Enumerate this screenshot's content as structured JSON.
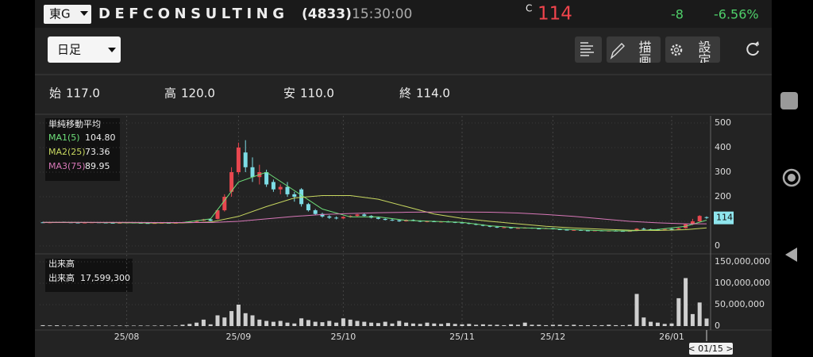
{
  "header": {
    "market": "東G",
    "company": "DEFCONSULTING",
    "code": "(4833)",
    "time": "15:30:00",
    "price_flag": "C",
    "price": "114",
    "change": "-8",
    "change_pct": "-6.56%"
  },
  "toolbar": {
    "period": "日足",
    "draw_button": "描画",
    "settings_button": "設定"
  },
  "ohlc_row": [
    {
      "label": "始",
      "value": "117.0"
    },
    {
      "label": "高",
      "value": "120.0"
    },
    {
      "label": "安",
      "value": "110.0"
    },
    {
      "label": "終",
      "value": "114.0"
    }
  ],
  "cursor_date": "< 01/15 >",
  "chart_data": {
    "type": "candlestick",
    "categories": [
      null,
      null,
      null,
      null,
      null,
      null,
      null,
      null,
      null,
      null,
      null,
      null,
      "25/08",
      null,
      null,
      null,
      null,
      null,
      null,
      null,
      null,
      null,
      null,
      null,
      null,
      null,
      null,
      null,
      "25/09",
      null,
      null,
      null,
      null,
      null,
      null,
      null,
      null,
      null,
      null,
      null,
      null,
      null,
      null,
      "25/10",
      null,
      null,
      null,
      null,
      null,
      null,
      null,
      null,
      null,
      null,
      null,
      null,
      null,
      null,
      null,
      null,
      "25/11",
      null,
      null,
      null,
      null,
      null,
      null,
      null,
      null,
      null,
      null,
      null,
      null,
      "25/12",
      null,
      null,
      null,
      null,
      null,
      null,
      null,
      null,
      null,
      null,
      null,
      null,
      null,
      null,
      null,
      null,
      "26/01",
      null,
      null,
      null,
      null,
      null
    ],
    "open": [
      96,
      95,
      96,
      97,
      96,
      95,
      94,
      95,
      96,
      95,
      94,
      93,
      94,
      95,
      94,
      93,
      92,
      93,
      94,
      93,
      94,
      96,
      98,
      103,
      108,
      110,
      145,
      220,
      300,
      380,
      320,
      280,
      300,
      260,
      230,
      240,
      210,
      230,
      170,
      145,
      130,
      120,
      115,
      112,
      118,
      122,
      128,
      122,
      115,
      110,
      106,
      104,
      100,
      106,
      102,
      99,
      100,
      98,
      99,
      97,
      95,
      93,
      90,
      86,
      82,
      78,
      75,
      76,
      72,
      73,
      74,
      71,
      70,
      72,
      68,
      66,
      64,
      65,
      63,
      62,
      63,
      61,
      62,
      61,
      60,
      61,
      70,
      68,
      67,
      66,
      69,
      68,
      72,
      88,
      100,
      117
    ],
    "high": [
      98,
      97,
      98,
      99,
      97,
      96,
      96,
      97,
      97,
      96,
      95,
      95,
      96,
      96,
      95,
      94,
      94,
      95,
      95,
      95,
      97,
      99,
      104,
      110,
      112,
      150,
      210,
      320,
      420,
      430,
      360,
      330,
      310,
      270,
      250,
      260,
      220,
      235,
      175,
      150,
      135,
      125,
      120,
      120,
      125,
      130,
      132,
      125,
      118,
      112,
      110,
      106,
      108,
      108,
      104,
      102,
      103,
      101,
      102,
      99,
      98,
      95,
      92,
      88,
      84,
      80,
      78,
      77,
      75,
      76,
      75,
      73,
      74,
      73,
      70,
      68,
      66,
      67,
      65,
      64,
      64,
      63,
      64,
      63,
      62,
      72,
      74,
      70,
      69,
      70,
      72,
      75,
      90,
      110,
      125,
      120
    ],
    "low": [
      94,
      93,
      95,
      95,
      94,
      93,
      93,
      94,
      94,
      93,
      92,
      92,
      93,
      93,
      92,
      91,
      91,
      92,
      92,
      92,
      93,
      95,
      97,
      101,
      100,
      108,
      140,
      200,
      290,
      300,
      260,
      250,
      240,
      220,
      210,
      200,
      180,
      160,
      140,
      125,
      115,
      110,
      108,
      110,
      115,
      118,
      120,
      112,
      108,
      104,
      102,
      98,
      99,
      100,
      97,
      96,
      97,
      95,
      96,
      93,
      92,
      88,
      84,
      80,
      76,
      73,
      72,
      70,
      70,
      71,
      70,
      68,
      69,
      67,
      65,
      63,
      62,
      62,
      60,
      60,
      60,
      59,
      60,
      59,
      58,
      60,
      66,
      65,
      64,
      65,
      66,
      67,
      70,
      85,
      98,
      110
    ],
    "close": [
      95,
      96,
      97,
      96,
      95,
      94,
      95,
      96,
      95,
      94,
      93,
      94,
      95,
      94,
      93,
      92,
      93,
      94,
      93,
      94,
      96,
      98,
      103,
      108,
      102,
      145,
      200,
      300,
      400,
      320,
      280,
      300,
      250,
      230,
      240,
      210,
      200,
      170,
      145,
      130,
      120,
      115,
      112,
      118,
      122,
      128,
      122,
      115,
      110,
      106,
      104,
      100,
      106,
      102,
      99,
      100,
      98,
      99,
      97,
      95,
      93,
      90,
      86,
      82,
      78,
      75,
      76,
      72,
      73,
      74,
      71,
      70,
      72,
      68,
      66,
      64,
      65,
      63,
      62,
      63,
      61,
      62,
      61,
      60,
      61,
      70,
      68,
      67,
      66,
      69,
      68,
      72,
      88,
      100,
      122,
      114
    ],
    "volume": [
      2000000,
      1500000,
      1800000,
      1200000,
      1000000,
      1500000,
      1300000,
      1100000,
      1600000,
      1200000,
      1000000,
      1400000,
      1200000,
      1100000,
      1300000,
      1000000,
      1200000,
      1500000,
      1100000,
      1400000,
      3000000,
      5000000,
      8000000,
      15000000,
      4000000,
      25000000,
      20000000,
      35000000,
      50000000,
      30000000,
      25000000,
      15000000,
      12000000,
      10000000,
      12000000,
      8000000,
      6000000,
      18000000,
      14000000,
      10000000,
      9000000,
      12000000,
      8000000,
      18000000,
      15000000,
      12000000,
      10000000,
      8000000,
      7000000,
      10000000,
      6000000,
      12000000,
      8000000,
      6000000,
      5000000,
      8000000,
      6000000,
      5000000,
      7000000,
      5000000,
      4000000,
      5000000,
      3000000,
      4000000,
      3000000,
      3000000,
      2000000,
      4000000,
      3000000,
      8000000,
      3000000,
      3000000,
      2000000,
      3000000,
      3000000,
      2000000,
      3000000,
      2000000,
      2000000,
      2000000,
      2000000,
      3000000,
      2000000,
      2000000,
      3000000,
      75000000,
      20000000,
      10000000,
      8000000,
      5000000,
      6000000,
      65000000,
      112000000,
      28000000,
      55000000,
      17599300
    ],
    "up_color": "#e8474f",
    "down_color": "#7ddde6",
    "volume_color": "#cfcfcf",
    "ylim": [
      0,
      500
    ],
    "yticks": [
      0,
      100,
      200,
      300,
      400,
      500
    ],
    "volume_ylim": [
      0,
      150000000
    ],
    "volume_ticks": [
      0,
      {
        "value": 50000000,
        "label": "50,000,000"
      },
      {
        "value": 100000000,
        "label": "100,000,000"
      },
      {
        "value": 150000000,
        "label": "150,000,000"
      }
    ],
    "ma_title": "単純移動平均",
    "ma": [
      {
        "name": "MA1(5)",
        "value_label": "104.80",
        "color": "#6ee07a",
        "x": [
          0,
          4,
          8,
          12,
          16,
          20,
          24,
          28,
          32,
          36,
          40,
          44,
          48,
          52,
          56,
          60,
          64,
          68,
          72,
          76,
          80,
          84,
          88,
          92,
          95
        ],
        "values": [
          96,
          96,
          95,
          94,
          93,
          95,
          110,
          260,
          300,
          225,
          150,
          118,
          118,
          104,
          100,
          96,
          82,
          74,
          71,
          66,
          62,
          61,
          67,
          80,
          104.8
        ]
      },
      {
        "name": "MA2(25)",
        "value_label": "73.36",
        "color": "#c8d860",
        "x": [
          0,
          4,
          8,
          12,
          16,
          20,
          24,
          28,
          32,
          36,
          40,
          44,
          48,
          52,
          56,
          60,
          64,
          68,
          72,
          76,
          80,
          84,
          88,
          92,
          95
        ],
        "values": [
          95,
          95,
          95,
          95,
          94,
          94,
          97,
          120,
          160,
          195,
          205,
          205,
          190,
          160,
          130,
          112,
          100,
          90,
          80,
          73,
          68,
          64,
          63,
          66,
          73.36
        ]
      },
      {
        "name": "MA3(75)",
        "value_label": "89.95",
        "color": "#d878b8",
        "x": [
          0,
          4,
          8,
          12,
          16,
          20,
          24,
          28,
          32,
          36,
          40,
          44,
          48,
          52,
          56,
          60,
          64,
          68,
          72,
          76,
          80,
          84,
          88,
          92,
          95
        ],
        "values": [
          96,
          96,
          96,
          96,
          95,
          95,
          95,
          100,
          110,
          120,
          128,
          132,
          135,
          137,
          138,
          138,
          137,
          134,
          128,
          120,
          110,
          100,
          94,
          90,
          89.95
        ]
      }
    ],
    "volume_title": "出来高",
    "volume_label": "出来高",
    "volume_value": "17,599,300"
  }
}
